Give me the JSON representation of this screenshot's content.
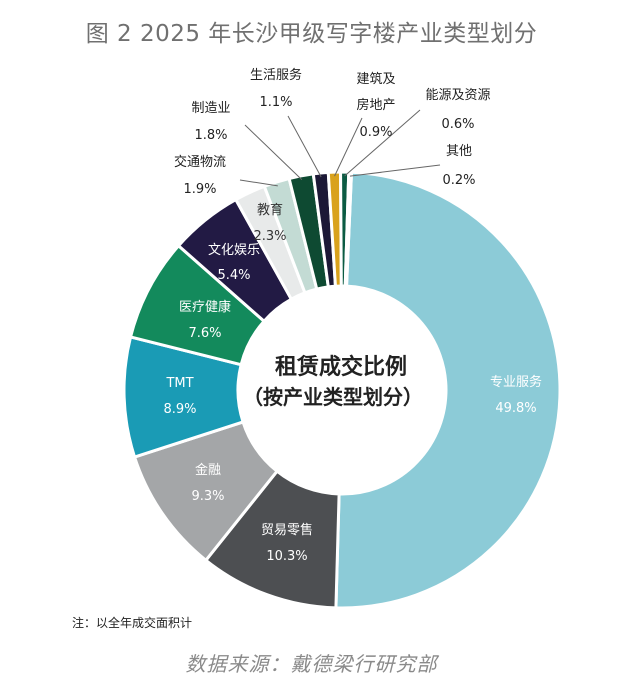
{
  "title": "图 2 2025 年长沙甲级写字楼产业类型划分",
  "note": "注：以全年成交面积计",
  "source": "数据来源：戴德梁行研究部",
  "chart_data": {
    "type": "pie",
    "donut": true,
    "center_title": "租赁成交比例",
    "center_subtitle": "（按产业类型划分）",
    "categories": [
      "专业服务",
      "贸易零售",
      "金融",
      "TMT",
      "医疗健康",
      "文化娱乐",
      "教育",
      "交通物流",
      "制造业",
      "生活服务",
      "建筑及房地产",
      "能源及资源",
      "其他"
    ],
    "values": [
      49.8,
      10.3,
      9.3,
      8.9,
      7.6,
      5.4,
      2.3,
      1.9,
      1.8,
      1.1,
      0.9,
      0.6,
      0.2
    ],
    "value_labels": [
      "49.8%",
      "10.3%",
      "9.3%",
      "8.9%",
      "7.6%",
      "5.4%",
      "2.3%",
      "1.9%",
      "1.8%",
      "1.1%",
      "0.9%",
      "0.6%",
      "0.2%"
    ],
    "colors": [
      "#8ccbd7",
      "#4d4f52",
      "#a4a6a8",
      "#1a9bb5",
      "#138a5c",
      "#221a44",
      "#e8eaea",
      "#c3dbd4",
      "#0e4a32",
      "#1c1836",
      "#d9a21c",
      "#0b5b43",
      "#1b8a84"
    ]
  }
}
